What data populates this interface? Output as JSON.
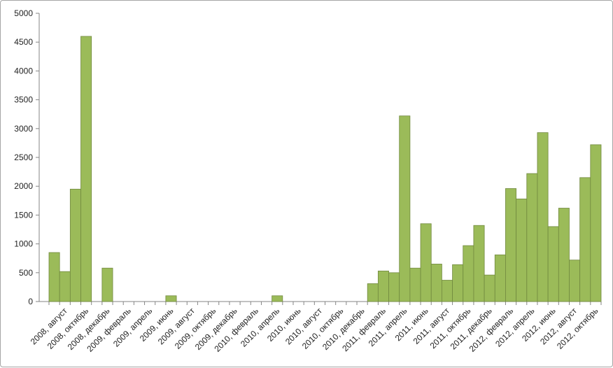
{
  "chart_data": {
    "type": "bar",
    "title": "",
    "xlabel": "",
    "ylabel": "",
    "ylim": [
      0,
      5000
    ],
    "yticks": [
      "0",
      "500",
      "1000",
      "1500",
      "2000",
      "2500",
      "3000",
      "3500",
      "4000",
      "4500",
      "5000"
    ],
    "grid": false,
    "legend": "none",
    "bar_color": "#9bbb59",
    "bar_edge_color": "#71893f",
    "categories": [
      "2008, июль",
      "2008, август",
      "2008, сентябрь",
      "2008, октябрь",
      "2008, ноябрь",
      "2008, декабрь",
      "2009, январь",
      "2009, февраль",
      "2009, март",
      "2009, апрель",
      "2009, май",
      "2009, июнь",
      "2009, июль",
      "2009, август",
      "2009, сентябрь",
      "2009, октябрь",
      "2009, ноябрь",
      "2009, декабрь",
      "2010, январь",
      "2010, февраль",
      "2010, март",
      "2010, апрель",
      "2010, май",
      "2010, июнь",
      "2010, июль",
      "2010, август",
      "2010, сентябрь",
      "2010, октябрь",
      "2010, ноябрь",
      "2010, декабрь",
      "2011, январь",
      "2011, февраль",
      "2011, март",
      "2011, апрель",
      "2011, май",
      "2011, июнь",
      "2011, июль",
      "2011, август",
      "2011, сентябрь",
      "2011, октябрь",
      "2011, ноябрь",
      "2011, декабрь",
      "2012, январь",
      "2012, февраль",
      "2012, март",
      "2012, апрель",
      "2012, май",
      "2012, июнь",
      "2012, июль",
      "2012, август",
      "2012, сентябрь",
      "2012, октябрь"
    ],
    "xtick_labels": [
      "2008, август",
      "2008, октябрь",
      "2008, декабрь",
      "2009, февраль",
      "2009, апрель",
      "2009, июнь",
      "2009, август",
      "2009, октябрь",
      "2009, декабрь",
      "2010, февраль",
      "2010, апрель",
      "2010, июнь",
      "2010, август",
      "2010, октябрь",
      "2010, декабрь",
      "2011, февраль",
      "2011, апрель",
      "2011, июнь",
      "2011, август",
      "2011, октябрь",
      "2011, декабрь",
      "2012, февраль",
      "2012, апрель",
      "2012, июнь",
      "2012, август",
      "2012, октябрь"
    ],
    "values": [
      850,
      520,
      1950,
      4600,
      0,
      580,
      0,
      0,
      0,
      0,
      0,
      100,
      0,
      0,
      0,
      0,
      0,
      0,
      0,
      0,
      0,
      100,
      0,
      0,
      0,
      0,
      0,
      0,
      0,
      0,
      310,
      530,
      500,
      3220,
      580,
      1350,
      650,
      370,
      640,
      970,
      1320,
      460,
      810,
      1960,
      1780,
      2220,
      2930,
      1300,
      1620,
      720,
      2150,
      2720
    ]
  }
}
